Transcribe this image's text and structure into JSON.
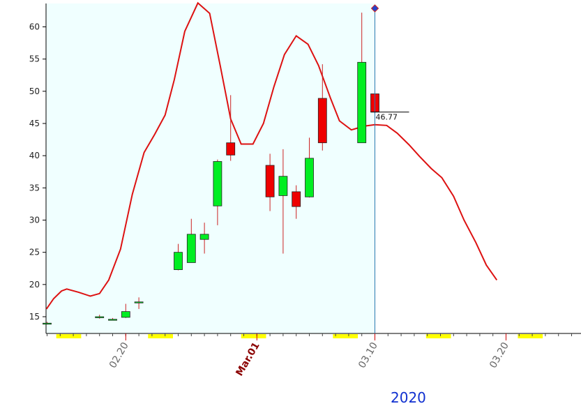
{
  "chart_data": {
    "type": "candlestick",
    "year_label": "2020",
    "ylim": [
      12.5,
      63.5
    ],
    "y_ticks": [
      15,
      20,
      25,
      30,
      35,
      40,
      45,
      50,
      55,
      60
    ],
    "x_labels": [
      {
        "label": "02.20",
        "index": 6,
        "major": false
      },
      {
        "label": "Mar.01",
        "index": 16,
        "major": true
      },
      {
        "label": "03.10",
        "index": 25,
        "major": false
      },
      {
        "label": "03.20",
        "index": 35,
        "major": false
      }
    ],
    "highlight_range": [
      0,
      25
    ],
    "cursor_index": 25,
    "last_price": 46.77,
    "colors": {
      "up": "#00ee22",
      "down": "#ee0000",
      "line": "#dd1111",
      "wick": "#cc2222",
      "highlight": "#f0ffff",
      "cursor": "#2a7ab0",
      "weekend": "#ffff00"
    },
    "candles": [
      {
        "i": 0,
        "o": 14.0,
        "h": 14.2,
        "l": 13.8,
        "c": 14.0
      },
      {
        "i": 4,
        "o": 15.0,
        "h": 15.3,
        "l": 14.7,
        "c": 15.0
      },
      {
        "i": 5,
        "o": 14.6,
        "h": 14.8,
        "l": 14.4,
        "c": 14.6
      },
      {
        "i": 6,
        "o": 14.9,
        "h": 17.0,
        "l": 14.8,
        "c": 15.8
      },
      {
        "i": 7,
        "o": 17.3,
        "h": 18.0,
        "l": 16.2,
        "c": 17.3
      },
      {
        "i": 10,
        "o": 22.3,
        "h": 26.3,
        "l": 22.2,
        "c": 25.0
      },
      {
        "i": 11,
        "o": 23.4,
        "h": 30.2,
        "l": 23.4,
        "c": 27.8
      },
      {
        "i": 12,
        "o": 27.0,
        "h": 29.6,
        "l": 24.8,
        "c": 27.8
      },
      {
        "i": 13,
        "o": 32.2,
        "h": 39.4,
        "l": 29.2,
        "c": 39.1
      },
      {
        "i": 14,
        "o": 42.0,
        "h": 49.4,
        "l": 39.2,
        "c": 40.1
      },
      {
        "i": 17,
        "o": 38.5,
        "h": 40.3,
        "l": 31.4,
        "c": 33.6
      },
      {
        "i": 18,
        "o": 33.8,
        "h": 41.0,
        "l": 24.8,
        "c": 36.8
      },
      {
        "i": 19,
        "o": 34.4,
        "h": 35.4,
        "l": 30.2,
        "c": 32.1
      },
      {
        "i": 20,
        "o": 33.6,
        "h": 42.8,
        "l": 33.5,
        "c": 39.6
      },
      {
        "i": 21,
        "o": 48.9,
        "h": 54.2,
        "l": 40.8,
        "c": 42.0
      },
      {
        "i": 24,
        "o": 42.0,
        "h": 62.2,
        "l": 42.0,
        "c": 54.5
      },
      {
        "i": 25,
        "o": 49.6,
        "h": 49.6,
        "l": 43.5,
        "c": 46.77
      }
    ],
    "line_series": [
      [
        -0.05,
        16.2
      ],
      [
        0.5,
        17.8
      ],
      [
        1.1,
        19.0
      ],
      [
        1.5,
        19.3
      ],
      [
        2.4,
        18.8
      ],
      [
        3.3,
        18.2
      ],
      [
        4.0,
        18.6
      ],
      [
        4.7,
        20.7
      ],
      [
        5.6,
        25.5
      ],
      [
        6.5,
        34.0
      ],
      [
        7.4,
        40.5
      ],
      [
        8.2,
        43.3
      ],
      [
        9.0,
        46.3
      ],
      [
        9.7,
        51.8
      ],
      [
        10.5,
        59.3
      ],
      [
        11.5,
        63.7
      ],
      [
        12.4,
        62.1
      ],
      [
        13.2,
        54.0
      ],
      [
        14.0,
        45.7
      ],
      [
        14.8,
        41.8
      ],
      [
        15.7,
        41.8
      ],
      [
        16.5,
        45.0
      ],
      [
        17.3,
        50.7
      ],
      [
        18.1,
        55.7
      ],
      [
        19.0,
        58.6
      ],
      [
        19.9,
        57.3
      ],
      [
        20.7,
        54.0
      ],
      [
        21.6,
        49.0
      ],
      [
        22.3,
        45.4
      ],
      [
        23.2,
        44.0
      ],
      [
        24.2,
        44.6
      ],
      [
        25.0,
        44.8
      ],
      [
        25.9,
        44.7
      ],
      [
        26.7,
        43.5
      ],
      [
        27.6,
        41.7
      ],
      [
        28.4,
        39.9
      ],
      [
        29.3,
        38.0
      ],
      [
        30.1,
        36.6
      ],
      [
        31.0,
        33.7
      ],
      [
        31.8,
        30.0
      ],
      [
        32.7,
        26.5
      ],
      [
        33.5,
        23.0
      ],
      [
        34.3,
        20.7
      ]
    ]
  }
}
